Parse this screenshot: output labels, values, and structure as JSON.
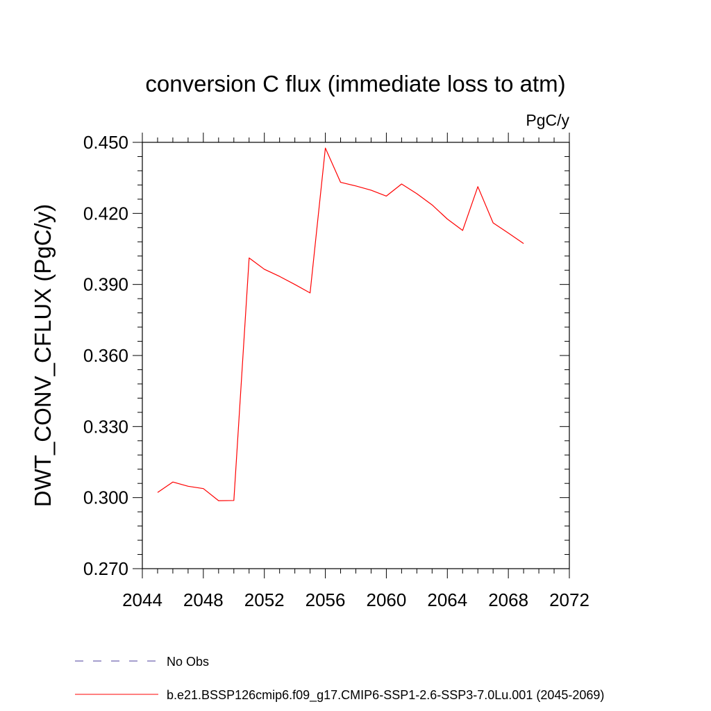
{
  "chart_data": {
    "type": "line",
    "title": "conversion C flux (immediate loss to atm)",
    "units": "PgC/y",
    "ylabel": "DWT_CONV_CFLUX  (PgC/y)",
    "xlabel": "",
    "xlim": [
      2044,
      2072
    ],
    "ylim": [
      0.27,
      0.45
    ],
    "x_ticks": [
      2044,
      2048,
      2052,
      2056,
      2060,
      2064,
      2068,
      2072
    ],
    "y_ticks": [
      0.27,
      0.3,
      0.33,
      0.36,
      0.39,
      0.42,
      0.45
    ],
    "x_tick_labels": [
      "2044",
      "2048",
      "2052",
      "2056",
      "2060",
      "2064",
      "2068",
      "2072"
    ],
    "y_tick_labels": [
      "0.270",
      "0.300",
      "0.330",
      "0.360",
      "0.390",
      "0.420",
      "0.450"
    ],
    "grid": false,
    "legend_position": "bottom-left",
    "series": [
      {
        "name": "b.e21.BSSP126cmip6.f09_g17.CMIP6-SSP1-2.6-SSP3-7.0Lu.001 (2045-2069)",
        "color": "#ff0000",
        "dash": "solid",
        "x": [
          2045,
          2046,
          2047,
          2048,
          2049,
          2050,
          2051,
          2052,
          2053,
          2054,
          2055,
          2056,
          2057,
          2058,
          2059,
          2060,
          2061,
          2062,
          2063,
          2064,
          2065,
          2066,
          2067,
          2068,
          2069
        ],
        "y": [
          0.3022,
          0.3066,
          0.3048,
          0.3038,
          0.2987,
          0.2988,
          0.4012,
          0.3964,
          0.3934,
          0.39,
          0.3864,
          0.4476,
          0.4331,
          0.4316,
          0.4298,
          0.4273,
          0.4324,
          0.4283,
          0.4236,
          0.4176,
          0.4128,
          0.4313,
          0.416,
          0.4117,
          0.4073
        ]
      }
    ],
    "legend": [
      {
        "label": "No Obs",
        "color": "#4b3c9e",
        "dash": "dashed"
      },
      {
        "label": "b.e21.BSSP126cmip6.f09_g17.CMIP6-SSP1-2.6-SSP3-7.0Lu.001 (2045-2069)",
        "color": "#ff0000",
        "dash": "solid"
      }
    ]
  }
}
